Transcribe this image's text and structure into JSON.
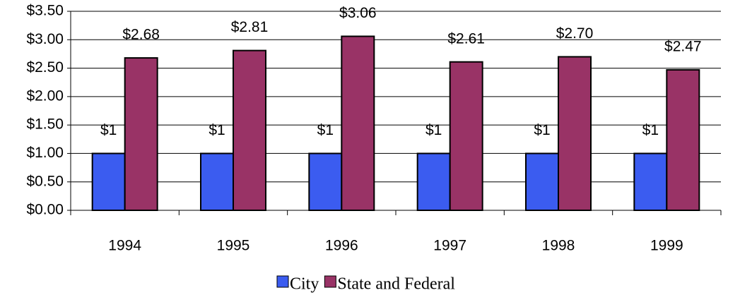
{
  "chart_data": {
    "type": "bar",
    "categories": [
      "1994",
      "1995",
      "1996",
      "1997",
      "1998",
      "1999"
    ],
    "series": [
      {
        "name": "City",
        "color": "#3b5cf0",
        "values": [
          1,
          1,
          1,
          1,
          1,
          1
        ],
        "value_labels": [
          "$1",
          "$1",
          "$1",
          "$1",
          "$1",
          "$1"
        ]
      },
      {
        "name": "State and Federal",
        "color": "#993366",
        "values": [
          2.68,
          2.81,
          3.06,
          2.61,
          2.7,
          2.47
        ],
        "value_labels": [
          "$2.68",
          "$2.81",
          "$3.06",
          "$2.61",
          "$2.70",
          "$2.47"
        ]
      }
    ],
    "ylim": [
      0,
      3.5
    ],
    "yticks": [
      {
        "value": 0,
        "label": "$0.00"
      },
      {
        "value": 0.5,
        "label": "$0.50"
      },
      {
        "value": 1,
        "label": "$1.00"
      },
      {
        "value": 1.5,
        "label": "$1.50"
      },
      {
        "value": 2,
        "label": "$2.00"
      },
      {
        "value": 2.5,
        "label": "$2.50"
      },
      {
        "value": 3,
        "label": "$3.00"
      },
      {
        "value": 3.5,
        "label": "$3.50"
      }
    ],
    "grid": true,
    "legend": "bottom"
  }
}
